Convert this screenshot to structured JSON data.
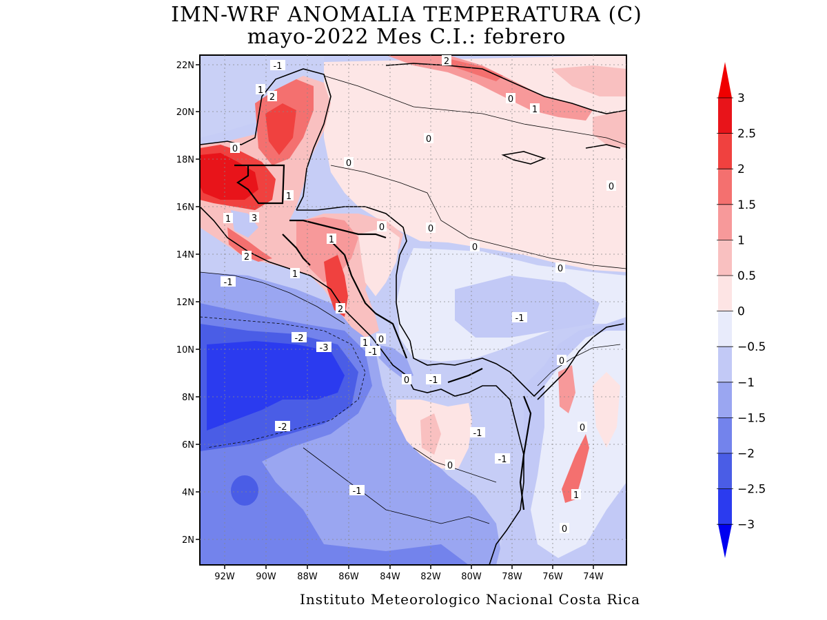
{
  "title": {
    "line1": "IMN-WRF  ANOMALIA TEMPERATURA (C)",
    "line2": "mayo-2022 Mes C.I.: febrero"
  },
  "credit": "Instituto Meteorologico Nacional Costa Rica",
  "map": {
    "lon_labels": [
      "92W",
      "90W",
      "88W",
      "86W",
      "84W",
      "82W",
      "80W",
      "78W",
      "76W",
      "74W"
    ],
    "lat_labels": [
      "22N",
      "20N",
      "18N",
      "16N",
      "14N",
      "12N",
      "10N",
      "8N",
      "6N",
      "4N",
      "2N"
    ],
    "contour_labels": [
      {
        "text": "-1",
        "kind": "neg"
      },
      {
        "text": "1",
        "kind": "pos"
      },
      {
        "text": "2",
        "kind": "pos"
      },
      {
        "text": "2",
        "kind": "pos"
      },
      {
        "text": "0",
        "kind": "zero"
      },
      {
        "text": "1",
        "kind": "pos"
      },
      {
        "text": "0",
        "kind": "zero"
      },
      {
        "text": "0",
        "kind": "zero"
      },
      {
        "text": "0",
        "kind": "zero"
      },
      {
        "text": "1",
        "kind": "pos"
      },
      {
        "text": "1",
        "kind": "pos"
      },
      {
        "text": "3",
        "kind": "pos"
      },
      {
        "text": "0",
        "kind": "zero"
      },
      {
        "text": "0",
        "kind": "zero"
      },
      {
        "text": "1",
        "kind": "pos"
      },
      {
        "text": "0",
        "kind": "zero"
      },
      {
        "text": "2",
        "kind": "pos"
      },
      {
        "text": "1",
        "kind": "pos"
      },
      {
        "text": "-1",
        "kind": "neg"
      },
      {
        "text": "2",
        "kind": "pos"
      },
      {
        "text": "0",
        "kind": "zero"
      },
      {
        "text": "-1",
        "kind": "neg"
      },
      {
        "text": "-2",
        "kind": "neg"
      },
      {
        "text": "-3",
        "kind": "neg"
      },
      {
        "text": "1",
        "kind": "pos"
      },
      {
        "text": "0",
        "kind": "zero"
      },
      {
        "text": "-1",
        "kind": "neg"
      },
      {
        "text": "0",
        "kind": "zero"
      },
      {
        "text": "-1",
        "kind": "neg"
      },
      {
        "text": "-2",
        "kind": "neg"
      },
      {
        "text": "-1",
        "kind": "neg"
      },
      {
        "text": "-1",
        "kind": "neg"
      },
      {
        "text": "0",
        "kind": "zero"
      },
      {
        "text": "-1",
        "kind": "neg"
      },
      {
        "text": "0",
        "kind": "zero"
      },
      {
        "text": "0",
        "kind": "zero"
      },
      {
        "text": "1",
        "kind": "pos"
      },
      {
        "text": "0",
        "kind": "zero"
      },
      {
        "text": "0",
        "kind": "zero"
      }
    ]
  },
  "colorbar": {
    "labels": [
      "3",
      "2.5",
      "2",
      "1.5",
      "1",
      "0.5",
      "0",
      "−0.5",
      "−1",
      "−1.5",
      "−2",
      "−2.5",
      "−3"
    ],
    "colors_top_to_bottom": [
      "#e8141a",
      "#f0413f",
      "#f4706f",
      "#f7999a",
      "#f9c0c0",
      "#fde4e4",
      "#e8ebfb",
      "#c2c9f6",
      "#9aa6f1",
      "#7383ec",
      "#4a5de6",
      "#2b3bef"
    ],
    "arrow_top_color": "#f00000",
    "arrow_bottom_color": "#0000f0"
  }
}
